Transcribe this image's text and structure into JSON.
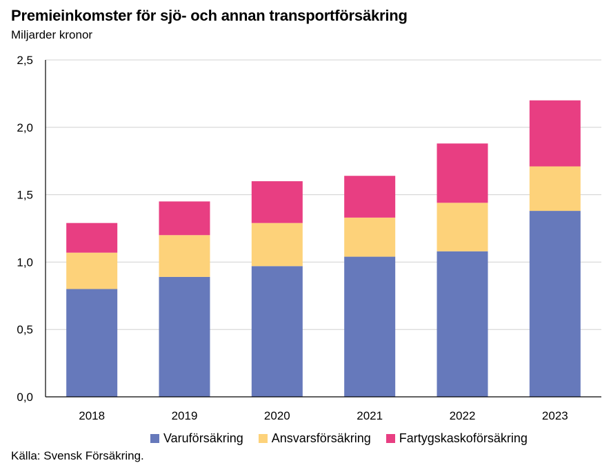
{
  "title": "Premieinkomster för sjö- och annan transportförsäkring",
  "subtitle": "Miljarder kronor",
  "source": "Källa: Svensk Försäkring.",
  "chart_data": {
    "type": "bar",
    "stacked": true,
    "categories": [
      "2018",
      "2019",
      "2020",
      "2021",
      "2022",
      "2023"
    ],
    "series": [
      {
        "name": "Varuförsäkring",
        "color": "#6679bb",
        "values": [
          0.8,
          0.89,
          0.97,
          1.04,
          1.08,
          1.38
        ]
      },
      {
        "name": "Ansvarsförsäkring",
        "color": "#fdd27a",
        "values": [
          0.27,
          0.31,
          0.32,
          0.29,
          0.36,
          0.33
        ]
      },
      {
        "name": "Fartygskaskoförsäkring",
        "color": "#e83e82",
        "values": [
          0.22,
          0.25,
          0.31,
          0.31,
          0.44,
          0.49
        ]
      }
    ],
    "ylim": [
      0,
      2.5
    ],
    "yticks": [
      "0,0",
      "0,5",
      "1,0",
      "1,5",
      "2,0",
      "2,5"
    ],
    "grid": true,
    "legend": "bottom"
  }
}
